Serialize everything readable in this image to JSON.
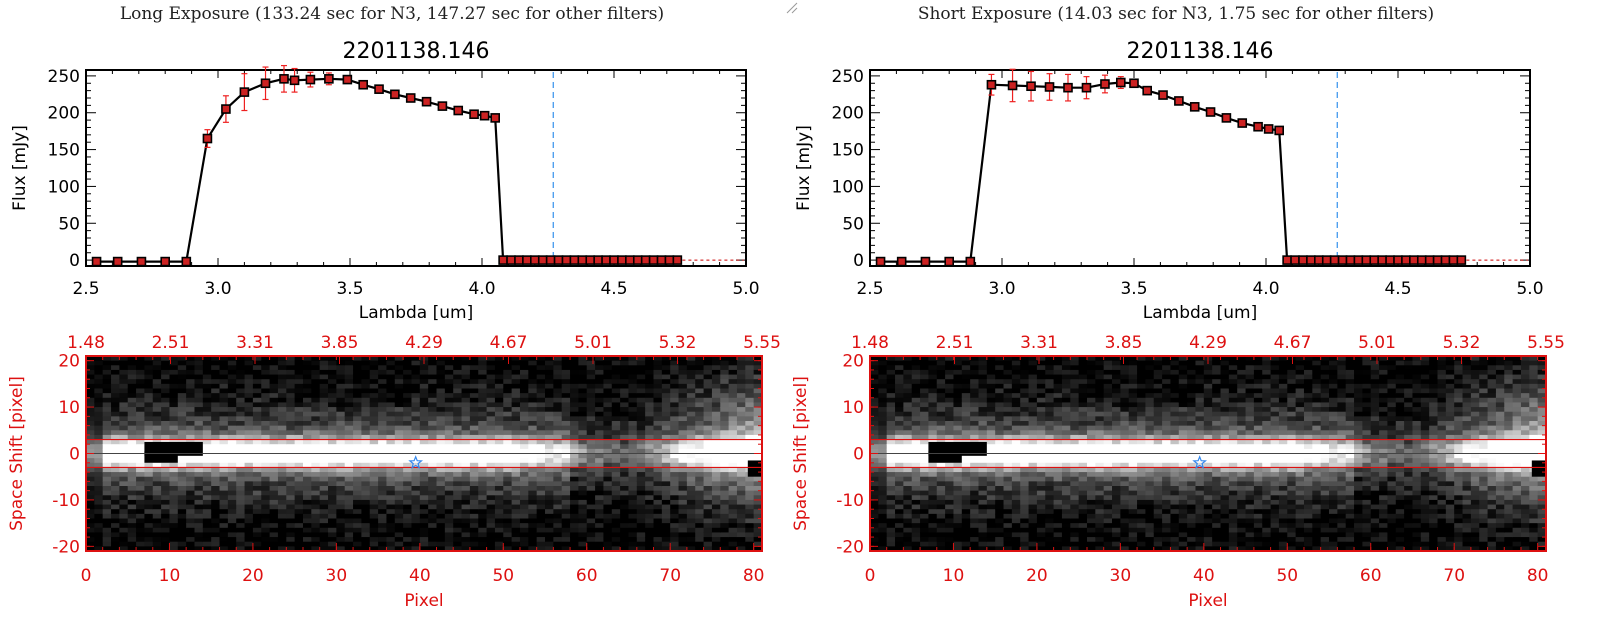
{
  "colors": {
    "axis_black": "#000000",
    "axis_red": "#dd1111",
    "marker_red": "#cc2222",
    "error_red": "#ee2020",
    "marker_line": "#cc0000",
    "dashed_blue": "#4499ee",
    "star_blue": "#3388ee"
  },
  "panels": [
    {
      "title": "Long Exposure (133.24 sec for N3, 147.27 sec for other filters)",
      "chart_data": {
        "type": "line",
        "title": "2201138.146",
        "xlabel": "Lambda [um]",
        "ylabel": "Flux [mJy]",
        "xlim": [
          2.5,
          5.0
        ],
        "ylim": [
          -8,
          258
        ],
        "xticks": [
          "2.5",
          "3.0",
          "3.5",
          "4.0",
          "4.5",
          "5.0"
        ],
        "xtick_values": [
          2.5,
          3.0,
          3.5,
          4.0,
          4.5,
          5.0
        ],
        "yticks": [
          "0",
          "50",
          "100",
          "150",
          "200",
          "250"
        ],
        "ytick_values": [
          0,
          50,
          100,
          150,
          200,
          250
        ],
        "vline_x": 4.27,
        "series": [
          {
            "x": [
              2.54,
              2.62,
              2.71,
              2.8,
              2.88,
              2.96,
              3.03,
              3.1,
              3.18,
              3.25,
              3.29,
              3.35,
              3.42,
              3.49,
              3.55,
              3.61,
              3.67,
              3.73,
              3.79,
              3.85,
              3.91,
              3.97,
              4.01,
              4.05,
              4.08,
              4.11,
              4.14,
              4.17,
              4.2,
              4.23,
              4.26,
              4.29,
              4.32,
              4.35,
              4.38,
              4.41,
              4.44,
              4.47,
              4.5,
              4.53,
              4.56,
              4.59,
              4.62,
              4.65,
              4.68,
              4.71,
              4.74
            ],
            "y": [
              -2,
              -2,
              -2,
              -2,
              -2,
              165,
              205,
              228,
              240,
              246,
              244,
              245,
              246,
              245,
              238,
              232,
              225,
              220,
              215,
              209,
              203,
              198,
              196,
              193,
              0,
              0,
              0,
              0,
              0,
              0,
              0,
              0,
              0,
              0,
              0,
              0,
              0,
              0,
              0,
              0,
              0,
              0,
              0,
              0,
              0,
              0,
              0
            ],
            "yerr": [
              0,
              0,
              0,
              0,
              0,
              12,
              18,
              25,
              22,
              18,
              16,
              10,
              8,
              0,
              0,
              0,
              0,
              0,
              0,
              0,
              0,
              0,
              0,
              0,
              0,
              0,
              0,
              0,
              0,
              0,
              0,
              0,
              0,
              0,
              0,
              0,
              0,
              0,
              0,
              0,
              0,
              0,
              0,
              0,
              0,
              0,
              0
            ]
          }
        ]
      },
      "image_chart": {
        "type": "heatmap",
        "xlabel": "Pixel",
        "ylabel": "Space Shift [pixel]",
        "xlim": [
          0,
          81
        ],
        "ylim": [
          -21,
          21
        ],
        "xticks": [
          "0",
          "10",
          "20",
          "30",
          "40",
          "50",
          "60",
          "70",
          "80"
        ],
        "xtick_values": [
          0,
          10,
          20,
          30,
          40,
          50,
          60,
          70,
          80
        ],
        "yticks": [
          "-20",
          "-10",
          "0",
          "10",
          "20"
        ],
        "ytick_values": [
          -20,
          -10,
          0,
          10,
          20
        ],
        "top_ticks": [
          "1.48",
          "2.51",
          "3.31",
          "3.85",
          "4.29",
          "4.67",
          "5.01",
          "5.32",
          "5.55"
        ],
        "hlines": [
          3,
          -3
        ],
        "star": {
          "x": 39.5,
          "y": -2
        }
      }
    },
    {
      "title": "Short Exposure (14.03 sec for N3, 1.75 sec for other filters)",
      "chart_data": {
        "type": "line",
        "title": "2201138.146",
        "xlabel": "Lambda [um]",
        "ylabel": "Flux [mJy]",
        "xlim": [
          2.5,
          5.0
        ],
        "ylim": [
          -8,
          258
        ],
        "xticks": [
          "2.5",
          "3.0",
          "3.5",
          "4.0",
          "4.5",
          "5.0"
        ],
        "xtick_values": [
          2.5,
          3.0,
          3.5,
          4.0,
          4.5,
          5.0
        ],
        "yticks": [
          "0",
          "50",
          "100",
          "150",
          "200",
          "250"
        ],
        "ytick_values": [
          0,
          50,
          100,
          150,
          200,
          250
        ],
        "vline_x": 4.27,
        "series": [
          {
            "x": [
              2.54,
              2.62,
              2.71,
              2.8,
              2.88,
              2.96,
              3.04,
              3.11,
              3.18,
              3.25,
              3.32,
              3.39,
              3.45,
              3.5,
              3.55,
              3.61,
              3.67,
              3.73,
              3.79,
              3.85,
              3.91,
              3.97,
              4.01,
              4.05,
              4.08,
              4.11,
              4.14,
              4.17,
              4.2,
              4.23,
              4.26,
              4.29,
              4.32,
              4.35,
              4.38,
              4.41,
              4.44,
              4.47,
              4.5,
              4.53,
              4.56,
              4.59,
              4.62,
              4.65,
              4.68,
              4.71,
              4.74
            ],
            "y": [
              -2,
              -2,
              -2,
              -2,
              -2,
              238,
              237,
              236,
              235,
              234,
              234,
              239,
              241,
              240,
              230,
              224,
              216,
              208,
              201,
              193,
              186,
              181,
              178,
              176,
              0,
              0,
              0,
              0,
              0,
              0,
              0,
              0,
              0,
              0,
              0,
              0,
              0,
              0,
              0,
              0,
              0,
              0,
              0,
              0,
              0,
              0,
              0
            ],
            "yerr": [
              0,
              0,
              0,
              0,
              0,
              14,
              22,
              20,
              18,
              18,
              15,
              12,
              8,
              0,
              0,
              0,
              0,
              0,
              0,
              0,
              0,
              0,
              0,
              0,
              0,
              0,
              0,
              0,
              0,
              0,
              0,
              0,
              0,
              0,
              0,
              0,
              0,
              0,
              0,
              0,
              0,
              0,
              0,
              0,
              0,
              0,
              0
            ]
          }
        ]
      },
      "image_chart": {
        "type": "heatmap",
        "xlabel": "Pixel",
        "ylabel": "Space Shift [pixel]",
        "xlim": [
          0,
          81
        ],
        "ylim": [
          -21,
          21
        ],
        "xticks": [
          "0",
          "10",
          "20",
          "30",
          "40",
          "50",
          "60",
          "70",
          "80"
        ],
        "xtick_values": [
          0,
          10,
          20,
          30,
          40,
          50,
          60,
          70,
          80
        ],
        "yticks": [
          "-20",
          "-10",
          "0",
          "10",
          "20"
        ],
        "ytick_values": [
          -20,
          -10,
          0,
          10,
          20
        ],
        "top_ticks": [
          "1.48",
          "2.51",
          "3.31",
          "3.85",
          "4.29",
          "4.67",
          "5.01",
          "5.32",
          "5.55"
        ],
        "hlines": [
          3,
          -3
        ],
        "star": {
          "x": 39.5,
          "y": -2
        }
      }
    }
  ]
}
